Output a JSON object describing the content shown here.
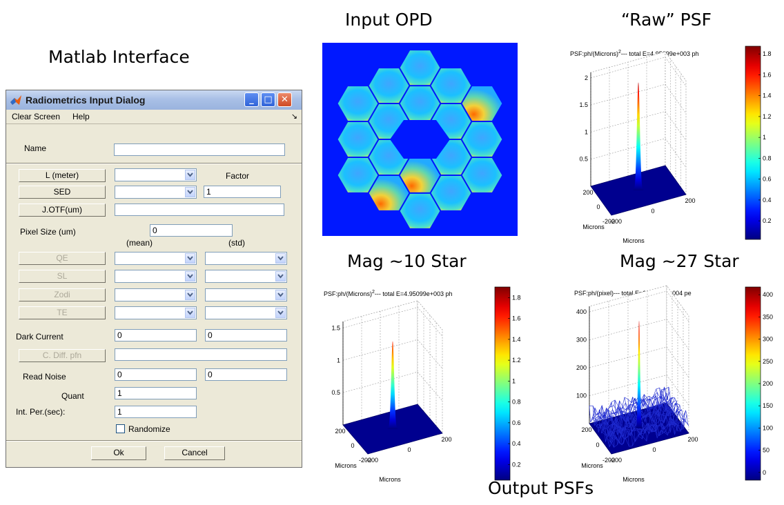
{
  "captions": {
    "matlab_interface": "Matlab Interface",
    "input_opd": "Input OPD",
    "raw_psf": "“Raw” PSF",
    "mag10": "Mag ~10 Star",
    "mag27": "Mag ~27 Star",
    "output_psfs": "Output PSFs"
  },
  "dialog": {
    "title": "Radiometrics Input Dialog",
    "window_buttons": [
      "_",
      "□",
      "✕"
    ],
    "menu": [
      "Clear Screen",
      "Help"
    ],
    "menu_arrow": "↘",
    "name_label": "Name",
    "name_value": "",
    "l_meter_button": "L (meter)",
    "factor_label": "Factor",
    "sed_button": "SED",
    "factor_value": "1",
    "jotf_button": "J.OTF(um)",
    "pixel_size_label": "Pixel Size (um)",
    "pixel_size_value": "0",
    "mean_label": "(mean)",
    "std_label": "(std)",
    "qe_button": "QE",
    "sl_button": "SL",
    "zodi_button": "Zodi",
    "te_button": "TE",
    "dark_current_label": "Dark Current",
    "dark_current_mean": "0",
    "dark_current_std": "0",
    "cdiff_button": "C. Diff. pfn",
    "read_noise_label": "Read Noise",
    "read_noise_mean": "0",
    "read_noise_std": "0",
    "quant_label": "Quant",
    "quant_value": "1",
    "int_per_label": "Int. Per.(sec):",
    "int_per_value": "1",
    "randomize_label": "Randomize",
    "ok_button": "Ok",
    "cancel_button": "Cancel"
  },
  "plots": {
    "raw": {
      "title_prefix": "PSF:ph/(Microns)",
      "title_sup": "2",
      "title_suffix": "--- total E=4.95099e+003 ph",
      "z_ticks": [
        "2",
        "1.5",
        "1",
        "0.5"
      ],
      "x_ticks": [
        "200",
        "0",
        "-200"
      ],
      "y_ticks": [
        "200",
        "0",
        "-200"
      ],
      "x_label": "Microns",
      "y_label": "Microns",
      "colorbar_ticks": [
        "1.8",
        "1.6",
        "1.4",
        "1.2",
        "1",
        "0.8",
        "0.6",
        "0.4",
        "0.2"
      ],
      "colormap": "jet"
    },
    "mag10": {
      "title_prefix": "PSF:ph/(Microns)",
      "title_sup": "2",
      "title_suffix": "--- total E=4.95099e+003 ph",
      "z_ticks": [
        "1.5",
        "1",
        "0.5"
      ],
      "x_ticks": [
        "200",
        "0",
        "-200"
      ],
      "y_ticks": [
        "200",
        "0",
        "-200"
      ],
      "x_label": "Microns",
      "y_label": "Microns",
      "colorbar_ticks": [
        "1.8",
        "1.6",
        "1.4",
        "1.2",
        "1",
        "0.8",
        "0.6",
        "0.4",
        "0.2"
      ],
      "colormap": "jet"
    },
    "mag27": {
      "title_prefix": "PSF:ph/(pixel)--- total E=2.06916e+004 pe",
      "title_sup": "",
      "title_suffix": "",
      "z_ticks": [
        "400",
        "300",
        "200",
        "100"
      ],
      "x_ticks": [
        "200",
        "0",
        "-200"
      ],
      "y_ticks": [
        "200",
        "0",
        "-200"
      ],
      "x_label": "Microns",
      "y_label": "Microns",
      "colorbar_ticks": [
        "400",
        "350",
        "300",
        "250",
        "200",
        "150",
        "100",
        "50",
        "0"
      ],
      "colormap": "jet"
    }
  },
  "colors": {
    "opd_background": "#0018ff",
    "psf_floor": "#00008f",
    "mesh_line": "#1f2bd0"
  }
}
